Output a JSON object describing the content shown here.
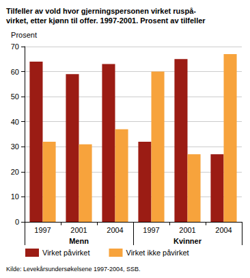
{
  "chart_data": {
    "type": "bar",
    "title": "Tilfeller av vold hvor gjerningspersonen virket ruspå-\nvirket, etter kjønn til offer. 1997-2001. Prosent av tilfeller",
    "y_label": "Prosent",
    "source": "Kilde: Levekårsundersøkelsene 1997-2004, SSB.",
    "categories": [
      "1997",
      "2001",
      "2004",
      "1997",
      "2001",
      "2004"
    ],
    "groups": [
      "Menn",
      "Menn",
      "Menn",
      "Kvinner",
      "Kvinner",
      "Kvinner"
    ],
    "series": [
      {
        "name": "Virket påvirket",
        "color": "#9b1c14",
        "values": [
          64,
          59,
          63,
          32,
          65,
          27
        ]
      },
      {
        "name": "Virket ikke påvirket",
        "color": "#f7a33c",
        "values": [
          32,
          31,
          37,
          60,
          27,
          67
        ]
      }
    ],
    "ylim": [
      0,
      70
    ],
    "yticks": [
      0,
      10,
      20,
      30,
      40,
      50,
      60,
      70
    ],
    "grid": true,
    "legend": "bottom"
  }
}
